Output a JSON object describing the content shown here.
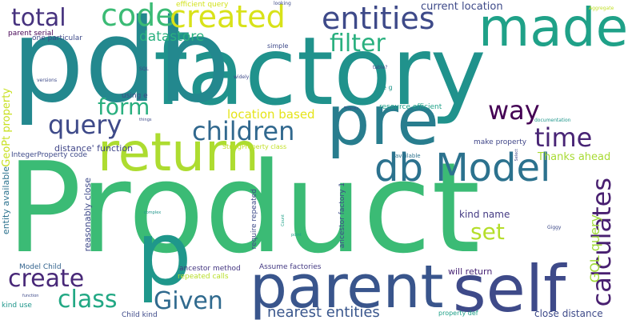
{
  "words": [
    {
      "text": "Product",
      "color": "#3bbb75",
      "orientation": "horizontal"
    },
    {
      "text": "factory",
      "color": "#20928c",
      "orientation": "horizontal"
    },
    {
      "text": "pdb",
      "color": "#23888e",
      "orientation": "horizontal"
    },
    {
      "text": "pre",
      "color": "#287d8e",
      "orientation": "horizontal"
    },
    {
      "text": "return",
      "color": "#addc30",
      "orientation": "horizontal"
    },
    {
      "text": "made",
      "color": "#1fa188",
      "orientation": "horizontal"
    },
    {
      "text": "parent",
      "color": "#39558c",
      "orientation": "horizontal"
    },
    {
      "text": "self",
      "color": "#3e4a89",
      "orientation": "horizontal"
    },
    {
      "text": "db Model",
      "color": "#2c728e",
      "orientation": "horizontal"
    },
    {
      "text": "p",
      "color": "#1f978b",
      "orientation": "horizontal"
    },
    {
      "text": "code",
      "color": "#3bbb75",
      "orientation": "horizontal"
    },
    {
      "text": "created",
      "color": "#d8e219",
      "orientation": "horizontal"
    },
    {
      "text": "entities",
      "color": "#3e4a89",
      "orientation": "horizontal"
    },
    {
      "text": "total",
      "color": "#46327e",
      "orientation": "horizontal"
    },
    {
      "text": "filter",
      "color": "#2ab07f",
      "orientation": "horizontal"
    },
    {
      "text": "datastore",
      "color": "#2ab07f",
      "orientation": "horizontal"
    },
    {
      "text": "current location",
      "color": "#3e4a89",
      "orientation": "horizontal"
    },
    {
      "text": "way",
      "color": "#440154",
      "orientation": "horizontal"
    },
    {
      "text": "form",
      "color": "#29af7f",
      "orientation": "horizontal"
    },
    {
      "text": "query",
      "color": "#3e4a89",
      "orientation": "horizontal"
    },
    {
      "text": "children",
      "color": "#31688e",
      "orientation": "horizontal"
    },
    {
      "text": "time",
      "color": "#482475",
      "orientation": "horizontal"
    },
    {
      "text": "calculates",
      "color": "#481f70",
      "orientation": "vertical"
    },
    {
      "text": "location based",
      "color": "#e5e419",
      "orientation": "horizontal"
    },
    {
      "text": "set",
      "color": "#b5de2b",
      "orientation": "horizontal"
    },
    {
      "text": "create",
      "color": "#482878",
      "orientation": "horizontal"
    },
    {
      "text": "class",
      "color": "#22a884",
      "orientation": "horizontal"
    },
    {
      "text": "Given",
      "color": "#306a8e",
      "orientation": "horizontal"
    },
    {
      "text": "nearest entities",
      "color": "#39568c",
      "orientation": "horizontal"
    },
    {
      "text": "GQL query",
      "color": "#a0da39",
      "orientation": "vertical"
    },
    {
      "text": "Thanks ahead",
      "color": "#a8db34",
      "orientation": "horizontal"
    },
    {
      "text": "kind name",
      "color": "#443a83",
      "orientation": "horizontal"
    },
    {
      "text": "distance' function",
      "color": "#404688",
      "orientation": "horizontal"
    },
    {
      "text": "make property",
      "color": "#404688",
      "orientation": "horizontal"
    },
    {
      "text": "close distance",
      "color": "#3e4a89",
      "orientation": "horizontal"
    },
    {
      "text": "will return",
      "color": "#482475",
      "orientation": "horizontal"
    },
    {
      "text": "Assume factories",
      "color": "#443a83",
      "orientation": "horizontal"
    },
    {
      "text": "ancestor method",
      "color": "#453781",
      "orientation": "horizontal"
    },
    {
      "text": "repeated calls",
      "color": "#b8de29",
      "orientation": "horizontal"
    },
    {
      "text": "property def",
      "color": "#1fa188",
      "orientation": "horizontal"
    },
    {
      "text": "Child kind",
      "color": "#3e4a89",
      "orientation": "horizontal"
    },
    {
      "text": "kind use",
      "color": "#1f968b",
      "orientation": "horizontal"
    },
    {
      "text": "Model Child",
      "color": "#33638d",
      "orientation": "horizontal"
    },
    {
      "text": "IntegerProperty code",
      "color": "#3e4a89",
      "orientation": "horizontal"
    },
    {
      "text": "StringProperty class",
      "color": "#c2df23",
      "orientation": "horizontal"
    },
    {
      "text": "using e",
      "color": "#3e4a89",
      "orientation": "horizontal"
    },
    {
      "text": "parent serial",
      "color": "#440154",
      "orientation": "horizontal"
    },
    {
      "text": "one particular",
      "color": "#3e4a89",
      "orientation": "horizontal"
    },
    {
      "text": "efficient query",
      "color": "#d2e21b",
      "orientation": "horizontal"
    },
    {
      "text": "resource efficient",
      "color": "#1fa188",
      "orientation": "horizontal"
    },
    {
      "text": "simple",
      "color": "#3e4a89",
      "orientation": "horizontal"
    },
    {
      "text": "e g",
      "color": "#1f968b",
      "orientation": "horizontal"
    },
    {
      "text": "available",
      "color": "#2c728e",
      "orientation": "horizontal"
    },
    {
      "text": "looking",
      "color": "#3e4a89",
      "orientation": "horizontal"
    },
    {
      "text": "Aggregate",
      "color": "#c0df25",
      "orientation": "horizontal"
    },
    {
      "text": "table?",
      "color": "#3e4a89",
      "orientation": "horizontal"
    },
    {
      "text": "Thanks",
      "color": "#3e4a89",
      "orientation": "horizontal"
    },
    {
      "text": "documentation",
      "color": "#1f968b",
      "orientation": "horizontal"
    },
    {
      "text": "versions",
      "color": "#3e4a89",
      "orientation": "horizontal"
    },
    {
      "text": "SQL",
      "color": "#3e4a89",
      "orientation": "horizontal"
    },
    {
      "text": "widely",
      "color": "#3e4a89",
      "orientation": "horizontal"
    },
    {
      "text": "things",
      "color": "#3e4a89",
      "orientation": "horizontal"
    },
    {
      "text": "complex",
      "color": "#1f968b",
      "orientation": "horizontal"
    },
    {
      "text": "Giggy",
      "color": "#3e4a89",
      "orientation": "horizontal"
    },
    {
      "text": "point",
      "color": "#1fa188",
      "orientation": "horizontal"
    },
    {
      "text": "function",
      "color": "#3e4a89",
      "orientation": "horizontal"
    },
    {
      "text": "GeoPt property",
      "color": "#c8e020",
      "orientation": "vertical"
    },
    {
      "text": "entity available",
      "color": "#2c728e",
      "orientation": "vertical"
    },
    {
      "text": "reasonably close",
      "color": "#3e4a89",
      "orientation": "vertical"
    },
    {
      "text": "require repeated",
      "color": "#3e4a89",
      "orientation": "vertical"
    },
    {
      "text": "ancestor factory 1",
      "color": "#3e4a89",
      "orientation": "vertical"
    },
    {
      "text": "Count",
      "color": "#1fa188",
      "orientation": "vertical"
    },
    {
      "text": "Select",
      "color": "#3e4a89",
      "orientation": "vertical"
    }
  ]
}
